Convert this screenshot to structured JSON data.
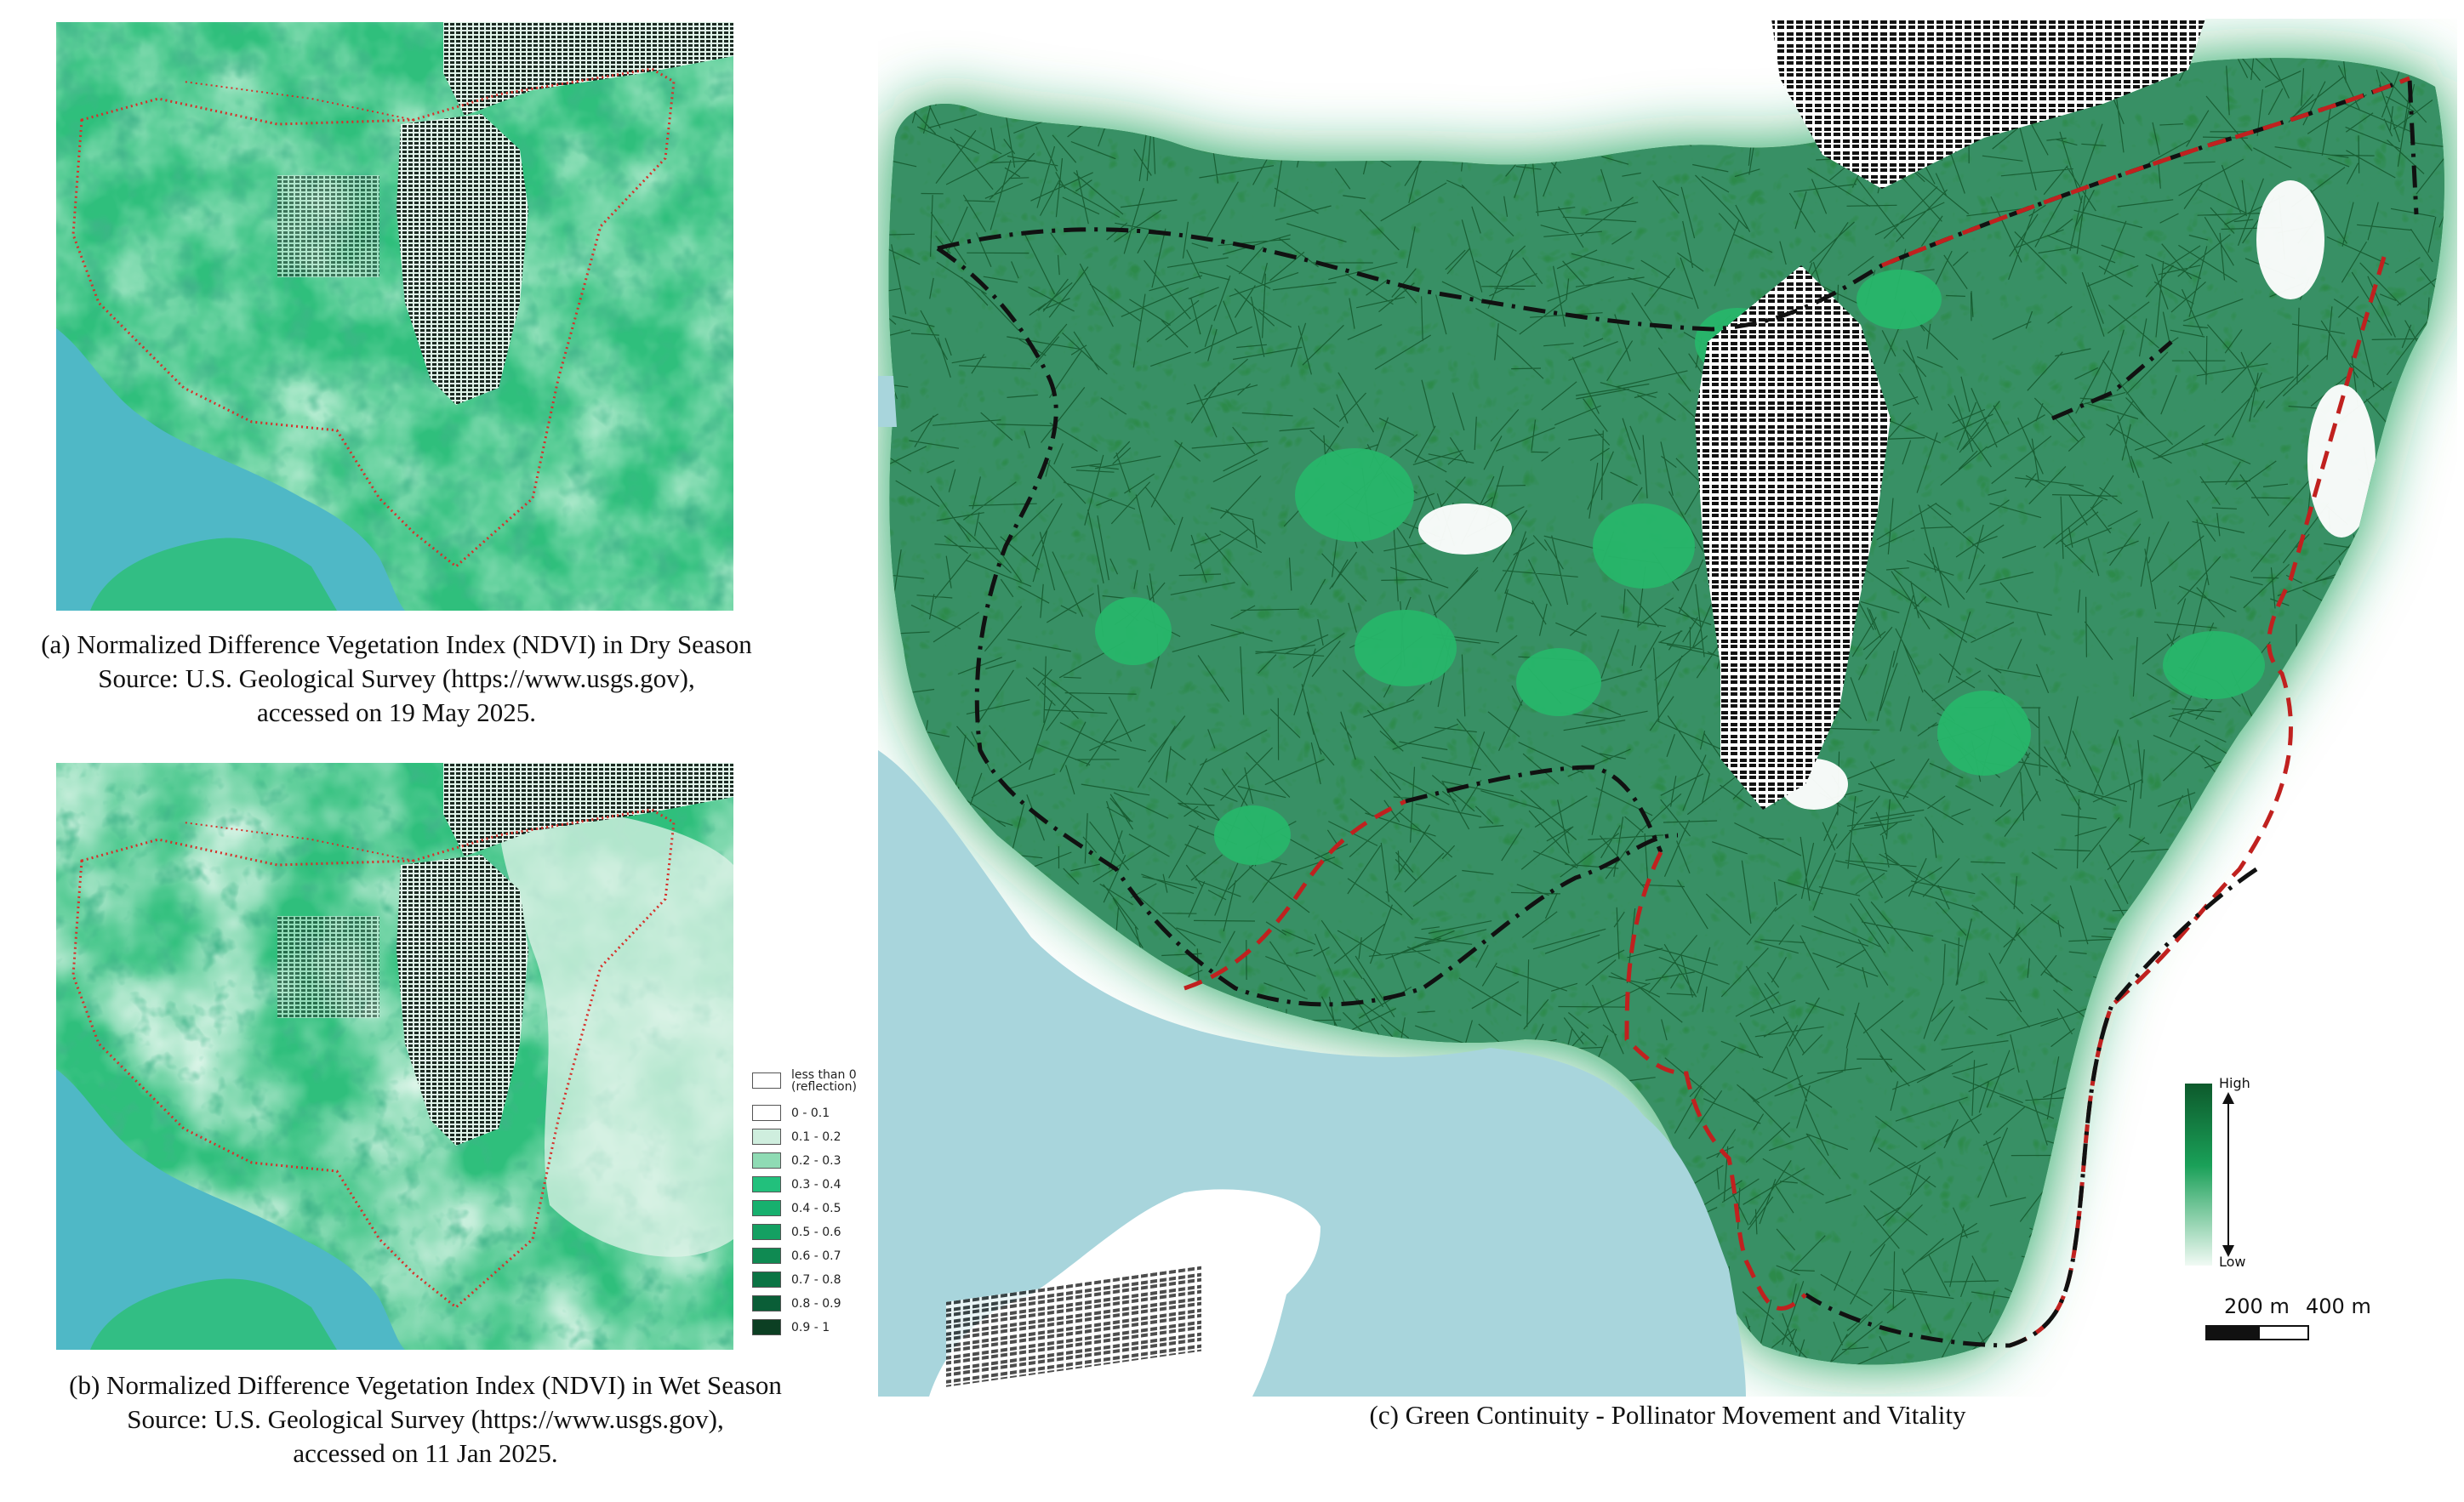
{
  "panels": {
    "a": {
      "caption_line1": "(a) Normalized Difference Vegetation Index (NDVI) in Dry Season",
      "caption_line2": "Source: U.S. Geological Survey (https://www.usgs.gov),",
      "caption_line3": "accessed on 19 May 2025."
    },
    "b": {
      "caption_line1": "(b) Normalized Difference Vegetation Index (NDVI) in Wet Season",
      "caption_line2": "Source: U.S. Geological Survey (https://www.usgs.gov),",
      "caption_line3": "accessed on 11 Jan 2025."
    },
    "c": {
      "caption": "(c) Green Continuity - Pollinator Movement and Vitality"
    }
  },
  "ndvi_legend": {
    "items": [
      {
        "label": "less than 0 (reflection)",
        "line1": "less than 0",
        "line2": "(reflection)",
        "color": "#ffffff"
      },
      {
        "label": "0 - 0.1",
        "color": "#ffffff"
      },
      {
        "label": "0.1 - 0.2",
        "color": "#cfeede"
      },
      {
        "label": "0.2 - 0.3",
        "color": "#8fdbb4"
      },
      {
        "label": "0.3 - 0.4",
        "color": "#22c07c"
      },
      {
        "label": "0.4 - 0.5",
        "color": "#17b06e"
      },
      {
        "label": "0.5 - 0.6",
        "color": "#14a062"
      },
      {
        "label": "0.6 - 0.7",
        "color": "#0f8a52"
      },
      {
        "label": "0.7 - 0.8",
        "color": "#0b7444"
      },
      {
        "label": "0.8 - 0.9",
        "color": "#0a5e37"
      },
      {
        "label": "0.9 - 1",
        "color": "#0c3f23"
      }
    ]
  },
  "vitality_legend": {
    "high_label": "High",
    "low_label": "Low",
    "high_color": "#0d5a2c",
    "low_color": "#f1faf4"
  },
  "scale_bar": {
    "label_200": "200 m",
    "label_400": "400 m"
  },
  "colors": {
    "water": "#a8d5dc",
    "ndvi_base": "#2fbf7c",
    "network": "#0f4f24",
    "boundary_red": "#d6312b",
    "boundary_black": "#111111"
  }
}
